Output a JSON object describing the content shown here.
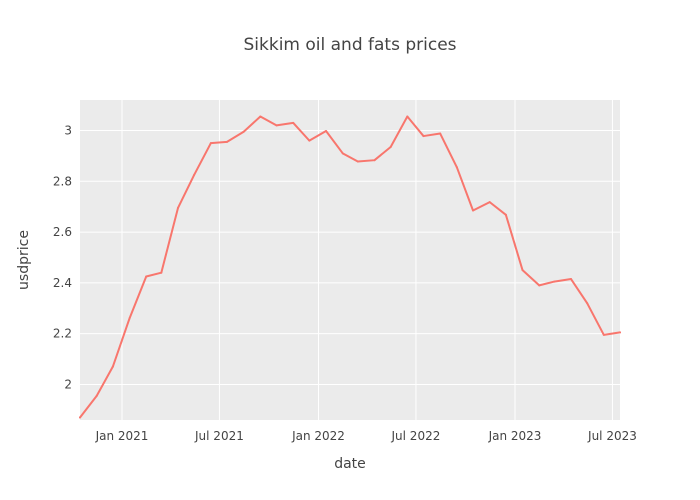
{
  "chart_data": {
    "type": "line",
    "title": "Sikkim oil and fats prices",
    "xlabel": "date",
    "ylabel": "usdprice",
    "x_range": [
      "2020-10-15",
      "2023-07-15"
    ],
    "ylim": [
      1.86,
      3.12
    ],
    "grid": true,
    "x_ticks": [
      {
        "date": "2021-01-01",
        "label": "Jan 2021"
      },
      {
        "date": "2021-07-01",
        "label": "Jul 2021"
      },
      {
        "date": "2022-01-01",
        "label": "Jan 2022"
      },
      {
        "date": "2022-07-01",
        "label": "Jul 2022"
      },
      {
        "date": "2023-01-01",
        "label": "Jan 2023"
      },
      {
        "date": "2023-07-01",
        "label": "Jul 2023"
      }
    ],
    "y_ticks": [
      2,
      2.2,
      2.4,
      2.6,
      2.8,
      3
    ],
    "y_tick_labels": [
      "2",
      "2.2",
      "2.4",
      "2.6",
      "2.8",
      "3"
    ],
    "series": [
      {
        "color": "#F8766D",
        "points": [
          {
            "x": "2020-10-15",
            "y": 1.87
          },
          {
            "x": "2020-11-15",
            "y": 1.955
          },
          {
            "x": "2020-12-15",
            "y": 2.07
          },
          {
            "x": "2021-01-15",
            "y": 2.26
          },
          {
            "x": "2021-02-15",
            "y": 2.425
          },
          {
            "x": "2021-03-15",
            "y": 2.44
          },
          {
            "x": "2021-04-15",
            "y": 2.695
          },
          {
            "x": "2021-05-15",
            "y": 2.825
          },
          {
            "x": "2021-06-15",
            "y": 2.95
          },
          {
            "x": "2021-07-15",
            "y": 2.955
          },
          {
            "x": "2021-08-15",
            "y": 2.995
          },
          {
            "x": "2021-09-15",
            "y": 3.055
          },
          {
            "x": "2021-10-15",
            "y": 3.02
          },
          {
            "x": "2021-11-15",
            "y": 3.03
          },
          {
            "x": "2021-12-15",
            "y": 2.96
          },
          {
            "x": "2022-01-15",
            "y": 2.998
          },
          {
            "x": "2022-02-15",
            "y": 2.91
          },
          {
            "x": "2022-03-15",
            "y": 2.878
          },
          {
            "x": "2022-04-15",
            "y": 2.883
          },
          {
            "x": "2022-05-15",
            "y": 2.935
          },
          {
            "x": "2022-06-15",
            "y": 3.055
          },
          {
            "x": "2022-07-15",
            "y": 2.978
          },
          {
            "x": "2022-08-15",
            "y": 2.988
          },
          {
            "x": "2022-09-15",
            "y": 2.855
          },
          {
            "x": "2022-10-15",
            "y": 2.685
          },
          {
            "x": "2022-11-15",
            "y": 2.718
          },
          {
            "x": "2022-12-15",
            "y": 2.668
          },
          {
            "x": "2023-01-15",
            "y": 2.45
          },
          {
            "x": "2023-02-15",
            "y": 2.39
          },
          {
            "x": "2023-03-15",
            "y": 2.405
          },
          {
            "x": "2023-04-15",
            "y": 2.415
          },
          {
            "x": "2023-05-15",
            "y": 2.32
          },
          {
            "x": "2023-06-15",
            "y": 2.195
          },
          {
            "x": "2023-07-15",
            "y": 2.205
          }
        ]
      }
    ]
  }
}
